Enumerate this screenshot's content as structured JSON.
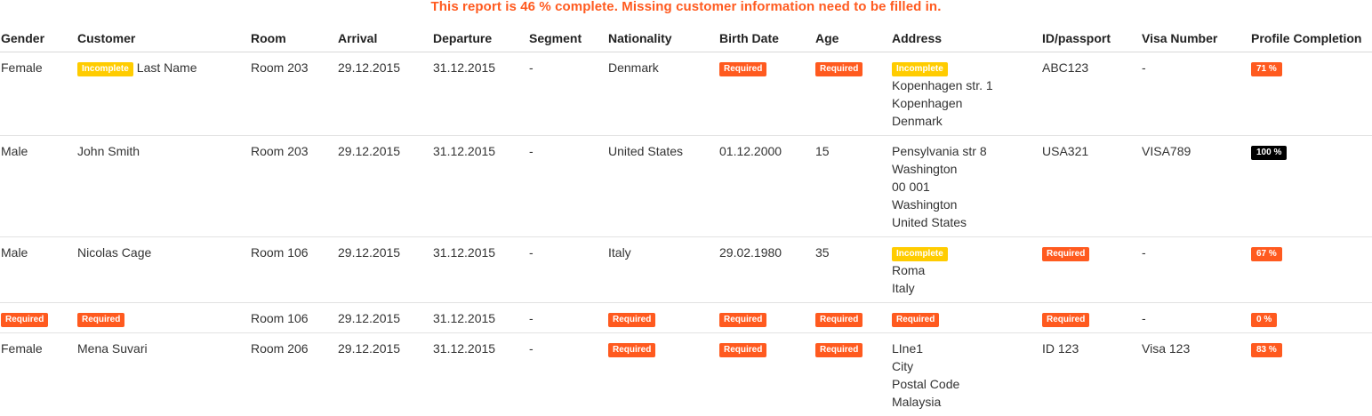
{
  "banner": {
    "message": "This report is 46 % complete. Missing customer information need to be filled in.",
    "color": "#ff5a1f"
  },
  "columns": [
    "Gender",
    "Customer",
    "Room",
    "Arrival",
    "Departure",
    "Segment",
    "Nationality",
    "Birth Date",
    "Age",
    "Address",
    "ID/passport",
    "Visa Number",
    "Profile Completion"
  ],
  "badges": {
    "required": "Required",
    "incomplete": "Incomplete",
    "required_color": "#ff5a1f",
    "incomplete_color": "#ffcc00",
    "complete_color": "#000000"
  },
  "rows": [
    {
      "gender": "Female",
      "customer_status": "Incomplete",
      "customer": "Last Name",
      "room": "Room 203",
      "arrival": "29.12.2015",
      "departure": "31.12.2015",
      "segment": "-",
      "nationality": "Denmark",
      "birth_date": "Required",
      "age": "Required",
      "address_status": "Incomplete",
      "address": [
        "Kopenhagen str. 1",
        "Kopenhagen",
        "Denmark"
      ],
      "id_passport": "ABC123",
      "visa_number": "-",
      "profile_completion": "71 %"
    },
    {
      "gender": "Male",
      "customer": "John Smith",
      "room": "Room 203",
      "arrival": "29.12.2015",
      "departure": "31.12.2015",
      "segment": "-",
      "nationality": "United States",
      "birth_date": "01.12.2000",
      "age": "15",
      "address": [
        "Pensylvania str 8",
        "Washington",
        "00 001",
        "Washington",
        "United States"
      ],
      "id_passport": "USA321",
      "visa_number": "VISA789",
      "profile_completion": "100 %"
    },
    {
      "gender": "Male",
      "customer": "Nicolas Cage",
      "room": "Room 106",
      "arrival": "29.12.2015",
      "departure": "31.12.2015",
      "segment": "-",
      "nationality": "Italy",
      "birth_date": "29.02.1980",
      "age": "35",
      "address_status": "Incomplete",
      "address": [
        "Roma",
        "Italy"
      ],
      "id_passport": "Required",
      "visa_number": "-",
      "profile_completion": "67 %"
    },
    {
      "gender": "Required",
      "customer": "Required",
      "room": "Room 106",
      "arrival": "29.12.2015",
      "departure": "31.12.2015",
      "segment": "-",
      "nationality": "Required",
      "birth_date": "Required",
      "age": "Required",
      "address_status": "Required",
      "address": [],
      "id_passport": "Required",
      "visa_number": "-",
      "profile_completion": "0 %"
    },
    {
      "gender": "Female",
      "customer": "Mena Suvari",
      "room": "Room 206",
      "arrival": "29.12.2015",
      "departure": "31.12.2015",
      "segment": "-",
      "nationality": "Required",
      "birth_date": "Required",
      "age": "Required",
      "address": [
        "LIne1",
        "City",
        "Postal Code",
        "Malaysia"
      ],
      "id_passport": "ID 123",
      "visa_number": "Visa 123",
      "profile_completion": "83 %"
    }
  ]
}
